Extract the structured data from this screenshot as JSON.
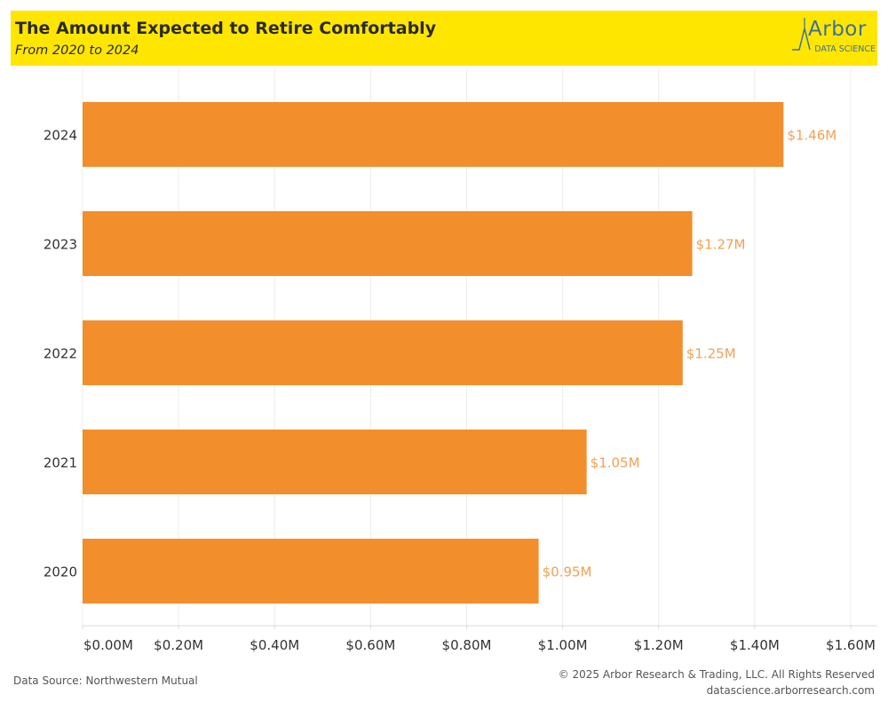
{
  "header": {
    "title": "The Amount Expected to Retire Comfortably",
    "subtitle": "From 2020 to 2024",
    "logo_word": "Arbor",
    "logo_sub": "DATA SCIENCE",
    "background_color": "#ffe600"
  },
  "chart_data": {
    "type": "bar",
    "orientation": "horizontal",
    "title": "The Amount Expected to Retire Comfortably",
    "subtitle": "From 2020 to 2024",
    "xlabel": "",
    "ylabel": "",
    "categories": [
      "2024",
      "2023",
      "2022",
      "2021",
      "2020"
    ],
    "values": [
      1.46,
      1.27,
      1.25,
      1.05,
      0.95
    ],
    "value_labels": [
      "$1.46M",
      "$1.27M",
      "$1.25M",
      "$1.05M",
      "$0.95M"
    ],
    "xlim": [
      0,
      1.6
    ],
    "x_ticks": [
      0,
      0.2,
      0.4,
      0.6,
      0.8,
      1.0,
      1.2,
      1.4,
      1.6
    ],
    "x_tick_labels": [
      "$0.00M",
      "$0.20M",
      "$0.40M",
      "$0.60M",
      "$0.80M",
      "$1.00M",
      "$1.20M",
      "$1.40M",
      "$1.60M"
    ],
    "grid": true,
    "bar_color": "#f28e2b",
    "label_color": "#f2a154"
  },
  "footer": {
    "source": "Data Source: Northwestern Mutual",
    "copyright": "© 2025 Arbor Research & Trading, LLC. All Rights Reserved",
    "website": "datascience.arborresearch.com"
  }
}
